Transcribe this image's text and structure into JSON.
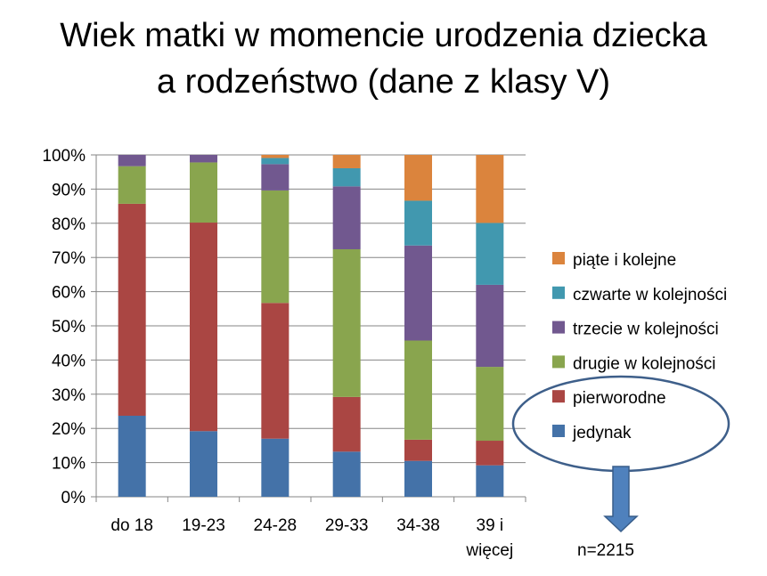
{
  "chart_data": {
    "type": "bar",
    "stacked": true,
    "percent": true,
    "title": [
      "Wiek matki w momencie urodzenia dziecka",
      "a rodzeństwo (dane z klasy V)"
    ],
    "categories": [
      "do 18",
      "19-23",
      "24-28",
      "29-33",
      "34-38",
      "39 i więcej"
    ],
    "category_lines": [
      [
        "do 18"
      ],
      [
        "19-23"
      ],
      [
        "24-28"
      ],
      [
        "29-33"
      ],
      [
        "34-38"
      ],
      [
        "39 i",
        "więcej"
      ]
    ],
    "yticks": [
      "0%",
      "10%",
      "20%",
      "30%",
      "40%",
      "50%",
      "60%",
      "70%",
      "80%",
      "90%",
      "100%"
    ],
    "ylim": [
      0,
      100
    ],
    "legend_position": "right",
    "series": [
      {
        "name": "jedynak",
        "color": "#4472A8",
        "values": [
          23.7,
          19.2,
          17.0,
          13.2,
          10.5,
          9.2
        ]
      },
      {
        "name": "pierworodne",
        "color": "#AA4643",
        "values": [
          62.0,
          61.0,
          39.7,
          16.0,
          6.2,
          7.2
        ]
      },
      {
        "name": "drugie w kolejności",
        "color": "#89A54E",
        "values": [
          11.0,
          17.6,
          32.9,
          43.2,
          29.0,
          21.6
        ]
      },
      {
        "name": "trzecie w kolejności",
        "color": "#71588F",
        "values": [
          3.3,
          2.2,
          7.7,
          18.4,
          27.8,
          24.0
        ]
      },
      {
        "name": "czwarte w kolejności",
        "color": "#4198AF",
        "values": [
          0,
          0,
          1.8,
          5.3,
          13.1,
          18.1
        ]
      },
      {
        "name": "piąte i kolejne",
        "color": "#DB843D",
        "values": [
          0,
          0,
          0.9,
          3.9,
          13.4,
          19.9
        ]
      }
    ],
    "annotation": {
      "text": "n=2215",
      "ellipse_color": "#3E5F8A",
      "arrow_color": "#4F81BD"
    }
  }
}
